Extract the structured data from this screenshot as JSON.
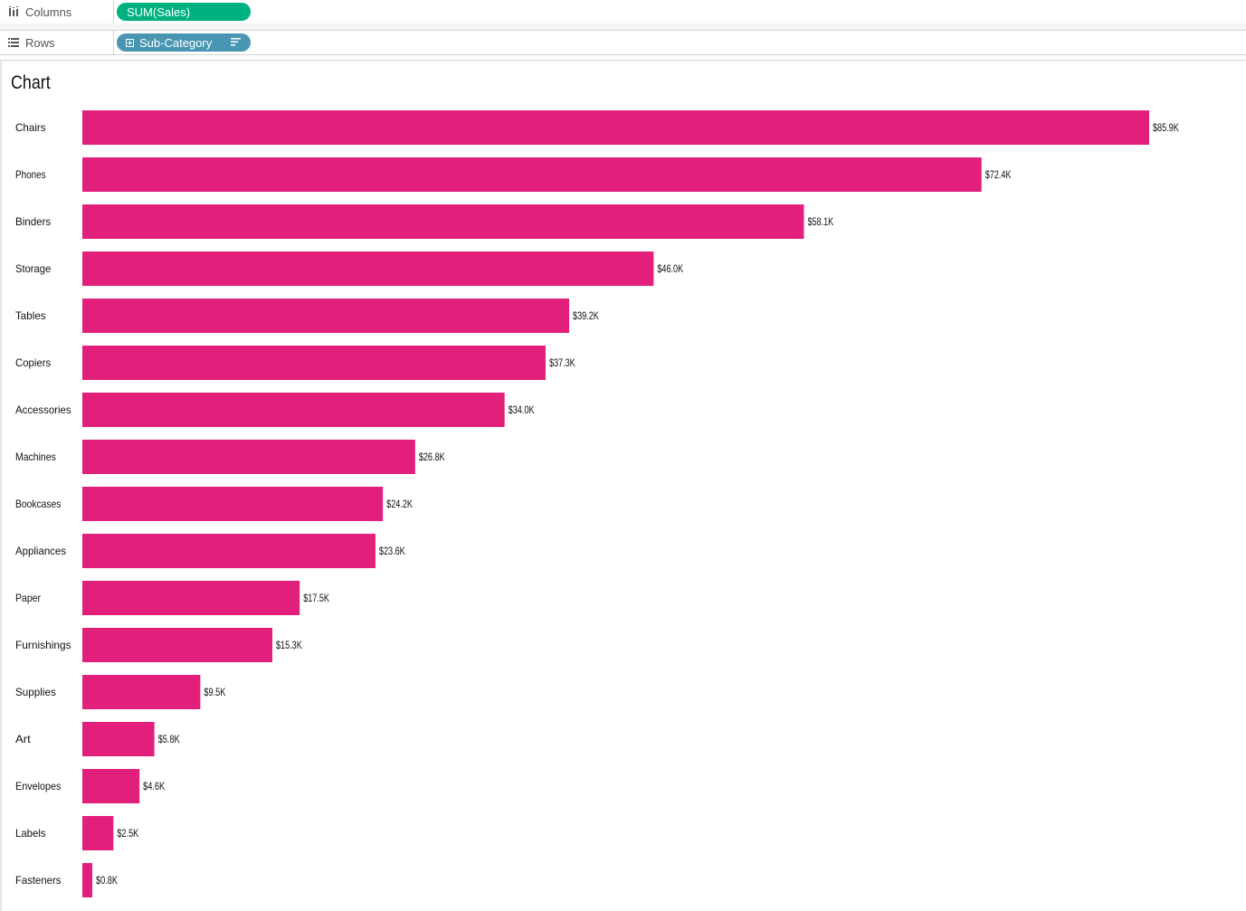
{
  "shelves": {
    "columns": {
      "label": "Columns",
      "icon": "columns-shelf-icon",
      "pill": "SUM(Sales)",
      "pill_color": "#00b180"
    },
    "rows": {
      "label": "Rows",
      "icon": "rows-shelf-icon",
      "pill": "Sub-Category",
      "pill_color": "#4996b2",
      "pill_icons": [
        "expand-plus-icon",
        "sort-descending-icon"
      ]
    }
  },
  "sheet": {
    "title": "Chart"
  },
  "chart_data": {
    "type": "bar",
    "orientation": "horizontal",
    "bar_color": "#e2207b",
    "categories": [
      "Chairs",
      "Phones",
      "Binders",
      "Storage",
      "Tables",
      "Copiers",
      "Accessories",
      "Machines",
      "Bookcases",
      "Appliances",
      "Paper",
      "Furnishings",
      "Supplies",
      "Art",
      "Envelopes",
      "Labels",
      "Fasteners"
    ],
    "values": [
      85.9,
      72.4,
      58.1,
      46.0,
      39.2,
      37.3,
      34.0,
      26.8,
      24.2,
      23.6,
      17.5,
      15.3,
      9.5,
      5.8,
      4.6,
      2.5,
      0.8
    ],
    "value_labels": [
      "$85.9K",
      "$72.4K",
      "$58.1K",
      "$46.0K",
      "$39.2K",
      "$37.3K",
      "$34.0K",
      "$26.8K",
      "$24.2K",
      "$23.6K",
      "$17.5K",
      "$15.3K",
      "$9.5K",
      "$5.8K",
      "$4.6K",
      "$2.5K",
      "$0.8K"
    ],
    "unit": "$K",
    "xlim": [
      0,
      85.9
    ],
    "grid": false,
    "legend": "none"
  }
}
